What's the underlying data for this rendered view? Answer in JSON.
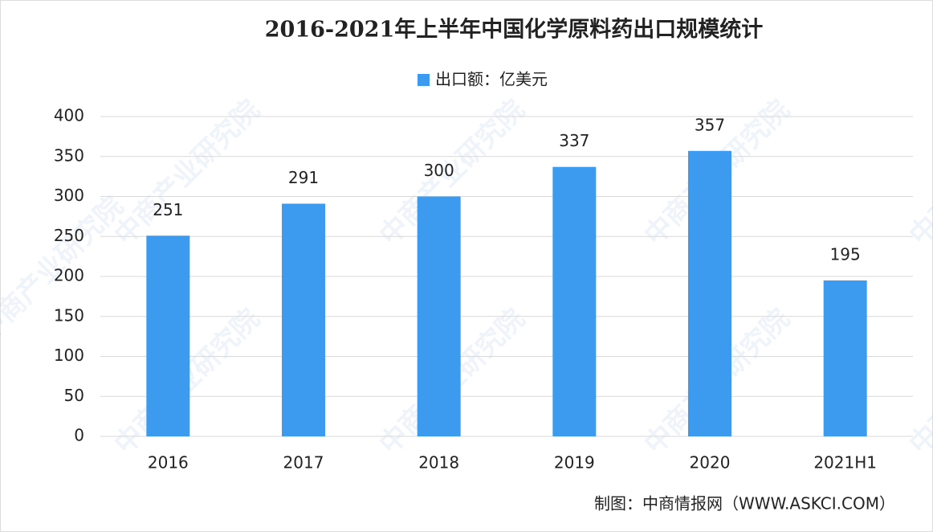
{
  "chart_data": {
    "type": "bar",
    "title": "2016-2021年上半年中国化学原料药出口规模统计",
    "categories": [
      "2016",
      "2017",
      "2018",
      "2019",
      "2020",
      "2021H1"
    ],
    "series": [
      {
        "name": "出口额：亿美元",
        "color": "#3d9bef",
        "values": [
          251,
          291,
          300,
          337,
          357,
          195
        ]
      }
    ],
    "ylim": [
      0,
      400
    ],
    "yticks": [
      0,
      50,
      100,
      150,
      200,
      250,
      300,
      350,
      400
    ],
    "grid": true,
    "legend": "top",
    "source": "制图：中商情报网（WWW.ASKCI.COM）",
    "watermark": "中商产业研究院"
  }
}
